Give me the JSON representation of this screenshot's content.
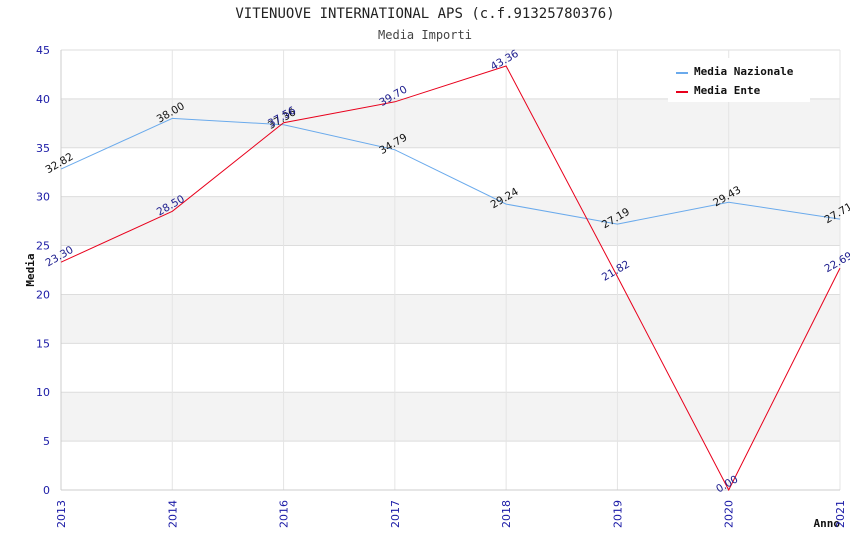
{
  "chart_data": {
    "type": "line",
    "title": "VITENUOVE INTERNATIONAL APS (c.f.91325780376)",
    "subtitle": "Media Importi",
    "xlabel": "Anno",
    "ylabel": "Media",
    "categories": [
      "2013",
      "2014",
      "2016",
      "2017",
      "2018",
      "2019",
      "2020",
      "2021"
    ],
    "ylim": [
      0,
      45
    ],
    "yticks": [
      0,
      5,
      10,
      15,
      20,
      25,
      30,
      35,
      40,
      45
    ],
    "grid": true,
    "legend_position": "top-right",
    "series": [
      {
        "name": "Media Nazionale",
        "color": "#6aaaec",
        "label_color": "#111111",
        "values": [
          32.82,
          38.0,
          37.36,
          34.79,
          29.24,
          27.19,
          29.43,
          27.71
        ],
        "labels": [
          "32.82",
          "38.00",
          "37.36",
          "34.79",
          "29.24",
          "27.19",
          "29.43",
          "27.71"
        ]
      },
      {
        "name": "Media Ente",
        "color": "#e8001c",
        "label_color": "#1a1a8c",
        "values": [
          23.3,
          28.5,
          37.56,
          39.7,
          43.36,
          21.82,
          0.0,
          22.69
        ],
        "labels": [
          "23.30",
          "28.50",
          "37.56",
          "39.70",
          "43.36",
          "21.82",
          "0.00",
          "22.69"
        ]
      }
    ]
  }
}
